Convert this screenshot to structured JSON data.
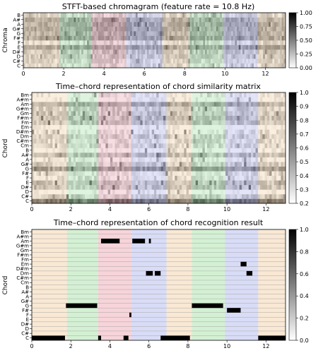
{
  "chart_data": [
    {
      "type": "heatmap",
      "title": "STFT-based chromagram (feature rate = 10.8 Hz)",
      "xlabel": "",
      "ylabel": "Chroma",
      "xlim": [
        0,
        13
      ],
      "x_ticks": [
        "0",
        "2",
        "4",
        "6",
        "8",
        "10",
        "12"
      ],
      "y_ticks": [
        "C",
        "C#",
        "D",
        "D#",
        "E",
        "F",
        "F#",
        "G",
        "G#",
        "A",
        "A#",
        "B"
      ],
      "colorbar": {
        "range": [
          0.0,
          1.0
        ],
        "ticks": [
          "0.00",
          "0.25",
          "0.50",
          "0.75",
          "1.00"
        ]
      },
      "cmap": "gray_r",
      "values_description": "chroma energy per frame",
      "segments": [
        {
          "start": 0.0,
          "end": 1.8,
          "color": "#f4d9b8"
        },
        {
          "start": 1.8,
          "end": 3.4,
          "color": "#b8e6b8"
        },
        {
          "start": 3.4,
          "end": 5.1,
          "color": "#f0b8c0"
        },
        {
          "start": 5.1,
          "end": 6.9,
          "color": "#c0c4f0"
        },
        {
          "start": 6.9,
          "end": 8.2,
          "color": "#f4d9b8"
        },
        {
          "start": 8.2,
          "end": 9.9,
          "color": "#b8e6b8"
        },
        {
          "start": 9.9,
          "end": 11.6,
          "color": "#c0c4f0"
        },
        {
          "start": 11.6,
          "end": 13.0,
          "color": "#f4d9b8"
        }
      ]
    },
    {
      "type": "heatmap",
      "title": "Time–chord representation of chord similarity matrix",
      "xlabel": "",
      "ylabel": "Chord",
      "xlim": [
        0,
        13
      ],
      "x_ticks": [
        "0",
        "2",
        "4",
        "6",
        "8",
        "10",
        "12"
      ],
      "y_ticks": [
        "C",
        "C#",
        "D",
        "D#",
        "E",
        "F",
        "F#",
        "G",
        "G#",
        "A",
        "A#",
        "B",
        "Cm",
        "C#m",
        "Dm",
        "D#m",
        "Em",
        "Fm",
        "F#m",
        "Gm",
        "G#m",
        "Am",
        "A#m",
        "Bm"
      ],
      "colorbar": {
        "range": [
          0.2,
          1.0
        ],
        "ticks": [
          "0.2",
          "0.3",
          "0.4",
          "0.5",
          "0.6",
          "0.7",
          "0.8",
          "0.9",
          "1.0"
        ]
      },
      "cmap": "gray_r"
    },
    {
      "type": "heatmap",
      "title": "Time–chord representation of chord recognition result",
      "xlabel": "",
      "ylabel": "Chord",
      "xlim": [
        0,
        13
      ],
      "x_ticks": [
        "0",
        "2",
        "4",
        "6",
        "8",
        "10",
        "12"
      ],
      "y_ticks": [
        "C",
        "C#",
        "D",
        "D#",
        "E",
        "F",
        "F#",
        "G",
        "G#",
        "A",
        "A#",
        "B",
        "Cm",
        "C#m",
        "Dm",
        "D#m",
        "Em",
        "Fm",
        "F#m",
        "Gm",
        "G#m",
        "Am",
        "A#m",
        "Bm"
      ],
      "colorbar": {
        "range": [
          0.0,
          1.0
        ],
        "ticks": [
          "0.0",
          "0.2",
          "0.4",
          "0.6",
          "0.8",
          "1.0"
        ]
      },
      "cmap": "gray_r",
      "recognized": [
        {
          "chord": "C",
          "start": 0.0,
          "end": 1.7
        },
        {
          "chord": "G",
          "start": 1.75,
          "end": 3.35
        },
        {
          "chord": "C",
          "start": 3.4,
          "end": 3.55
        },
        {
          "chord": "Am",
          "start": 3.55,
          "end": 4.5
        },
        {
          "chord": "C",
          "start": 4.7,
          "end": 4.95
        },
        {
          "chord": "F",
          "start": 5.0,
          "end": 5.1
        },
        {
          "chord": "Am",
          "start": 5.15,
          "end": 5.8
        },
        {
          "chord": "Am",
          "start": 6.0,
          "end": 6.1
        },
        {
          "chord": "Dm",
          "start": 5.85,
          "end": 6.2
        },
        {
          "chord": "Dm",
          "start": 6.3,
          "end": 6.6
        },
        {
          "chord": "C",
          "start": 6.6,
          "end": 8.1
        },
        {
          "chord": "G",
          "start": 8.2,
          "end": 9.8
        },
        {
          "chord": "F#",
          "start": 10.0,
          "end": 10.7
        },
        {
          "chord": "Em",
          "start": 10.7,
          "end": 11.0
        },
        {
          "chord": "Dm",
          "start": 11.0,
          "end": 11.3
        },
        {
          "chord": "C",
          "start": 11.6,
          "end": 13.0
        }
      ]
    }
  ]
}
